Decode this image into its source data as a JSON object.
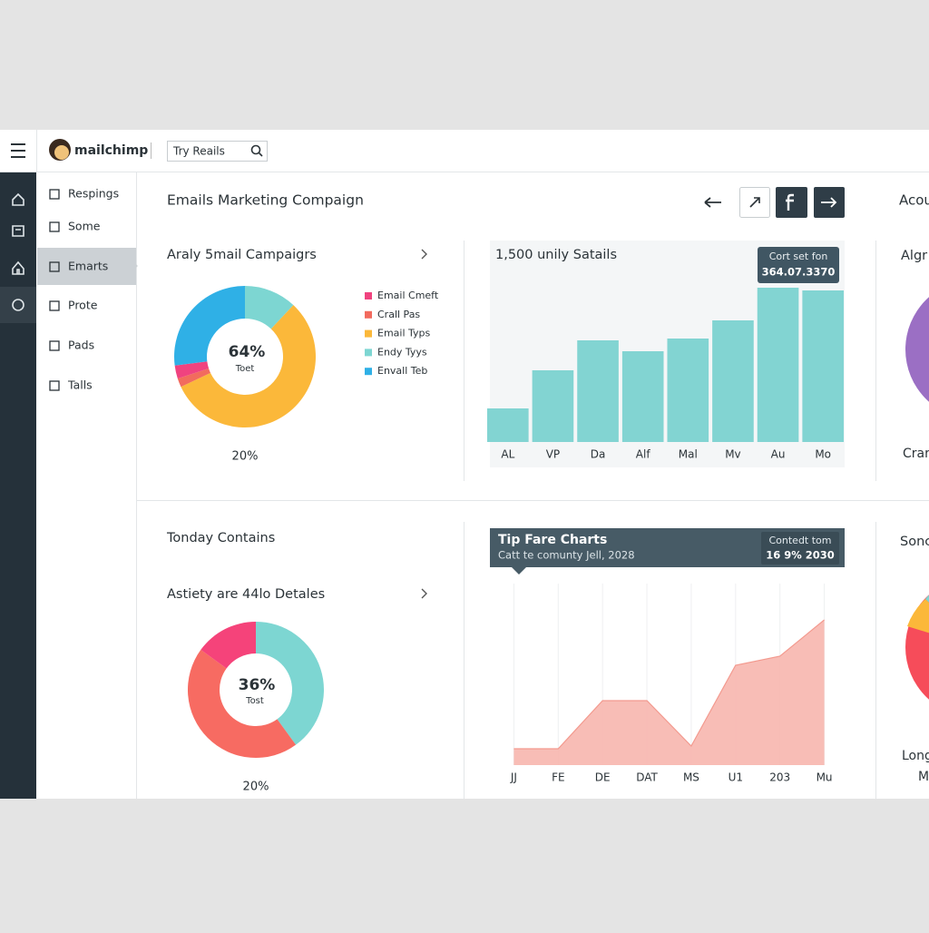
{
  "header": {
    "logo": "mailchimp",
    "search": "Try Reails"
  },
  "nav": [
    "Respings",
    "Some",
    "Emarts",
    "Prote",
    "Pads",
    "Talls"
  ],
  "page_title": "Emails Marketing Compaign",
  "campaigns": {
    "title": "Araly 5mail Campaigrs",
    "center_value": "64%",
    "center_label": "Toet",
    "footer": "20%",
    "segments": [
      {
        "name": "Email Cmeft",
        "color": "#f0437f",
        "value": 3
      },
      {
        "name": "Crall Pas",
        "color": "#f26b5e",
        "value": 2
      },
      {
        "name": "Email Typs",
        "color": "#fbb83a",
        "value": 56
      },
      {
        "name": "Endy Tyys",
        "color": "#7dd6d2",
        "value": 12
      },
      {
        "name": "Envall Teb",
        "color": "#2fb0e6",
        "value": 27
      }
    ]
  },
  "bars": {
    "title": "1,500 unily Satails",
    "tooltip": {
      "title": "Cort set fon",
      "value": "364.07.3370"
    },
    "chart": {
      "type": "bar",
      "categories": [
        "AL",
        "VP",
        "Da",
        "Alf",
        "Mal",
        "Mv",
        "Au",
        "Mo"
      ],
      "values": [
        37,
        79,
        112,
        100,
        114,
        134,
        170,
        167
      ],
      "color": "#82d4d2",
      "ylim": [
        0,
        200
      ]
    }
  },
  "contains": {
    "title": "Tonday Contains",
    "subtitle": "Astiety are 44lo Detales",
    "center_value": "36%",
    "center_label": "Tost",
    "footer": "20%",
    "segments": [
      {
        "color": "#7dd6d2",
        "value": 40
      },
      {
        "color": "#f76b62",
        "value": 45
      },
      {
        "color": "#f5437a",
        "value": 15
      }
    ]
  },
  "area": {
    "header": {
      "title": "Tip Fare Charts",
      "subtitle": "Catt te comunty Jell, 2028",
      "badge_label": "Contedt tom",
      "badge_value": "16 9% 2030"
    },
    "chart": {
      "type": "area",
      "categories": [
        "JJ",
        "FE",
        "DE",
        "DAT",
        "MS",
        "U1",
        "203",
        "Mu"
      ],
      "values": [
        18,
        18,
        71,
        71,
        21,
        110,
        120,
        160
      ],
      "color": "#f7b6ae",
      "ylim": [
        0,
        200
      ]
    }
  },
  "right_panel": {
    "top_title": "Acou",
    "top_label": "Algr",
    "top_footer": "Crar",
    "bottom_title": "Sonc",
    "bottom_label": "Long",
    "bottom_footer": "M"
  }
}
